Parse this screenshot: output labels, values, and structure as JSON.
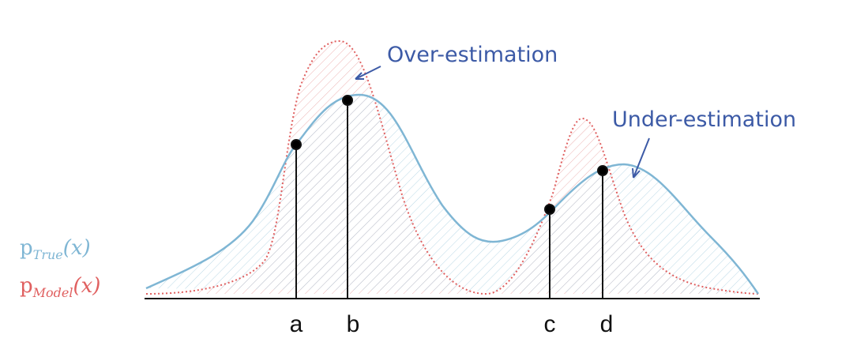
{
  "annotations": {
    "over": "Over-estimation",
    "under": "Under-estimation"
  },
  "legend": {
    "true": {
      "base": "p",
      "subscript": "True",
      "arg": "(x)"
    },
    "model": {
      "base": "p",
      "subscript": "Model",
      "arg": "(x)"
    }
  },
  "points": [
    "a",
    "b",
    "c",
    "d"
  ]
}
